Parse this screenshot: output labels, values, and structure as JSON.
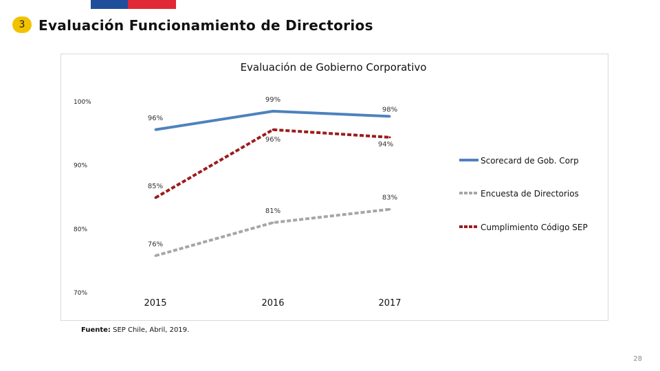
{
  "header": {
    "section_number": "3",
    "title": "Evaluación Funcionamiento de Directorios",
    "brand_colors": {
      "blue": "#1f4e9b",
      "red": "#e02836"
    }
  },
  "chart_data": {
    "type": "line",
    "title": "Evaluación de Gobierno Corporativo",
    "categories": [
      "2015",
      "2016",
      "2017"
    ],
    "ylim": [
      70,
      100
    ],
    "yticks": [
      {
        "value": 100,
        "label": "100%"
      },
      {
        "value": 90,
        "label": "90%"
      },
      {
        "value": 80,
        "label": "80%"
      },
      {
        "value": 70,
        "label": "70%"
      }
    ],
    "grid": false,
    "legend_position": "right",
    "series": [
      {
        "name": "Scorecard de Gob.  Corp",
        "values": [
          95.6,
          98.5,
          97.7
        ],
        "labels": [
          "96%",
          "99%",
          "98%"
        ],
        "color": "#4f81bd",
        "dash": "solid"
      },
      {
        "name": "Encuesta de Directorios",
        "values": [
          75.8,
          81.0,
          83.1
        ],
        "labels": [
          "76%",
          "81%",
          "83%"
        ],
        "color": "#a6a6a6",
        "dash": "dashed"
      },
      {
        "name": "Cumplimiento Código SEP",
        "values": [
          84.9,
          95.6,
          94.4
        ],
        "labels": [
          "85%",
          "96%",
          "94%"
        ],
        "color": "#9b1c1c",
        "dash": "dashed"
      }
    ]
  },
  "footer": {
    "source_label": "Fuente:",
    "source_text": " SEP Chile, Abril, 2019.",
    "page_number": "28"
  }
}
